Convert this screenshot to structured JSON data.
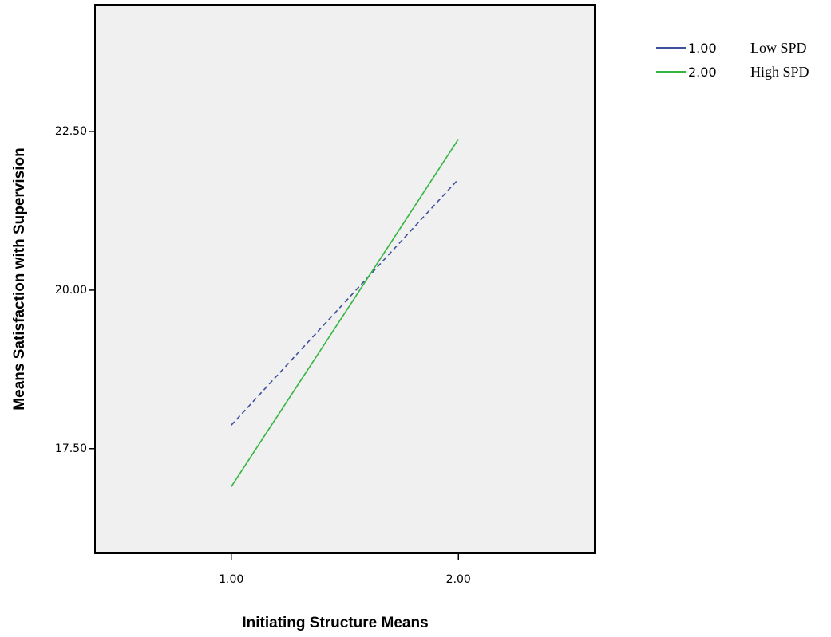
{
  "chart_data": {
    "type": "line",
    "xlabel": "Initiating Structure Means",
    "ylabel": "Means Satisfaction with Supervision",
    "x_ticks": [
      "1.00",
      "2.00"
    ],
    "y_ticks": [
      "17.50",
      "20.00",
      "22.50"
    ],
    "xlim": [
      0.4,
      2.6
    ],
    "ylim": [
      15.85,
      24.5
    ],
    "grid": false,
    "legend_position": "top-right, outside plot",
    "series": [
      {
        "name": "Low SPD",
        "code": "1.00",
        "x": [
          1.0,
          2.0
        ],
        "y": [
          17.87,
          21.75
        ],
        "color": "#3f4fa0",
        "dashed": true
      },
      {
        "name": "High SPD",
        "code": "2.00",
        "x": [
          1.0,
          2.0
        ],
        "y": [
          16.9,
          22.38
        ],
        "color": "#33b540",
        "dashed": false
      }
    ],
    "plot_background": "#f0f0f0"
  }
}
